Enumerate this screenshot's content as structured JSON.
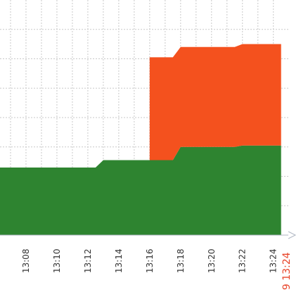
{
  "chart_data": {
    "type": "area",
    "title": "",
    "xlabel": "",
    "ylabel": "",
    "x_tick_labels": [
      "13:08",
      "13:10",
      "13:12",
      "13:14",
      "13:16",
      "13:18",
      "13:20",
      "13:22",
      "13:24"
    ],
    "x_end_label": "9 13:24",
    "x_end_label_color": "#e8452a",
    "xlim": [
      "13:06",
      "13:25"
    ],
    "ylim": [
      0,
      8
    ],
    "grid": true,
    "stacked": true,
    "series": [
      {
        "color": "#2e8430",
        "x": [
          "13:06",
          "13:11",
          "13:12.5",
          "13:13",
          "13:16",
          "13:17.5",
          "13:18",
          "13:21.5",
          "13:22",
          "13:24.5"
        ],
        "values": [
          2.3,
          2.3,
          2.3,
          2.55,
          2.55,
          2.55,
          3.0,
          3.0,
          3.05,
          3.05
        ]
      },
      {
        "color": "#f4511e",
        "x": [
          "13:16",
          "13:17.5",
          "13:18",
          "13:21.5",
          "13:22",
          "13:24.5"
        ],
        "values": [
          3.5,
          3.5,
          3.4,
          3.4,
          3.45,
          3.45
        ]
      }
    ]
  }
}
